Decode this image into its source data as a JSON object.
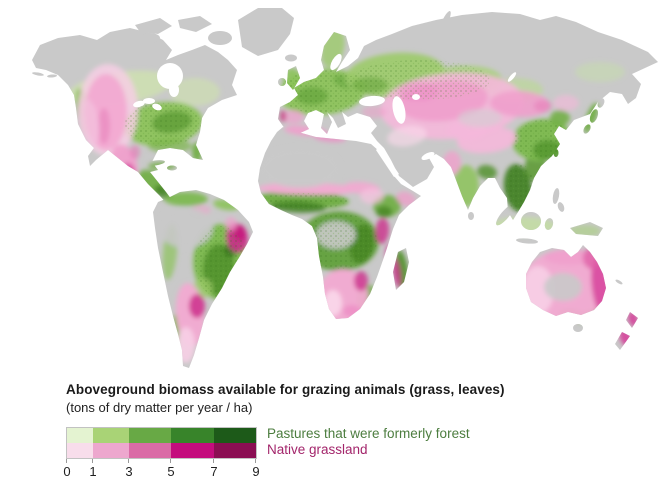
{
  "legend": {
    "title": "Aboveground biomass available for grazing animals (grass, leaves)",
    "subtitle": "(tons of dry matter per year / ha)",
    "axis_ticks": [
      "0",
      "1",
      "3",
      "5",
      "7",
      "9"
    ],
    "series": [
      {
        "label": "Pastures that were formerly forest",
        "label_color": "#4c7d3f",
        "swatches": [
          "#e4f3d1",
          "#a9d376",
          "#68a945",
          "#38842a",
          "#1d5a19"
        ]
      },
      {
        "label": "Native grassland",
        "label_color": "#a3256b",
        "swatches": [
          "#f8ddeb",
          "#eda7ce",
          "#da6ba6",
          "#c40c7d",
          "#8b0e53"
        ]
      }
    ]
  },
  "map": {
    "ocean_color": "#ffffff",
    "land_no_data_color": "#c9c9c9",
    "overlay_palette": {
      "pasture_green_light": "#a9d376",
      "pasture_green_mid": "#68a945",
      "pasture_green_dark": "#38842a",
      "grassland_pink_light": "#f7cfe5",
      "grassland_pink_mid": "#f0a0cc",
      "grassland_magenta": "#cc2f8c"
    },
    "visual_summary": [
      "North American Great Plains, western Mexico: pink native grassland",
      "Eastern United States, Europe, China, Southeast Asia: green former-forest pasture",
      "Central Asian steppe from Ukraine through Kazakhstan, Tibet and Mongolia: broad pale pink",
      "Sahel band, southern Africa, East Africa patches: pink to magenta",
      "Congo basin, Amazon basin, Sahara, Arabia, Siberia, northern Canada, Greenland: gray (no grazing biomass shown)",
      "Eastern Brazil and Pampas: strong magenta; surrounding Brazil: green",
      "Australia: pink with gray interior, magenta east coast; New Zealand: magenta"
    ]
  }
}
